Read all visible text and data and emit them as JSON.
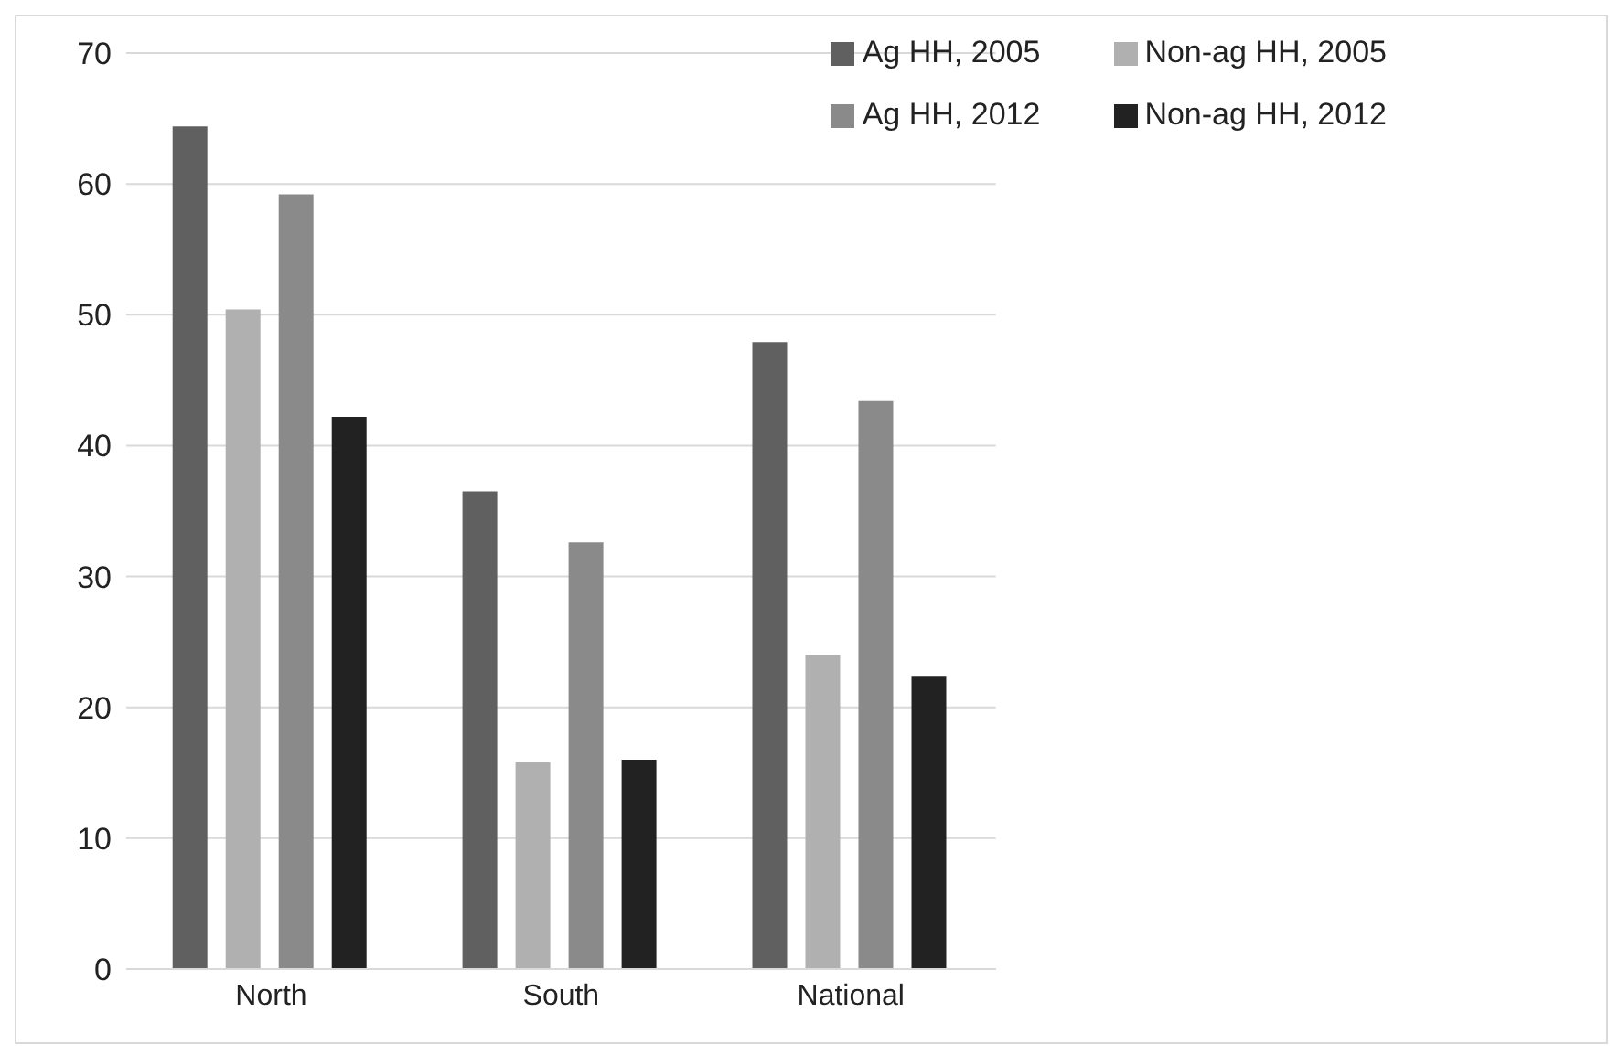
{
  "chart_data": {
    "type": "bar",
    "categories": [
      "North",
      "South",
      "National"
    ],
    "series": [
      {
        "name": "Ag HH, 2005",
        "color": "#606060",
        "values": [
          64.4,
          36.5,
          47.9
        ]
      },
      {
        "name": "Non-ag HH, 2005",
        "color": "#b0b0b0",
        "values": [
          50.4,
          15.8,
          24.0
        ]
      },
      {
        "name": "Ag HH, 2012",
        "color": "#8a8a8a",
        "values": [
          59.2,
          32.6,
          43.4
        ]
      },
      {
        "name": "Non-ag HH, 2012",
        "color": "#222222",
        "values": [
          42.2,
          16.0,
          22.4
        ]
      }
    ],
    "ylim": [
      0,
      70
    ],
    "yticks": [
      0,
      10,
      20,
      30,
      40,
      50,
      60,
      70
    ],
    "grid": "y",
    "legend": "top right"
  }
}
